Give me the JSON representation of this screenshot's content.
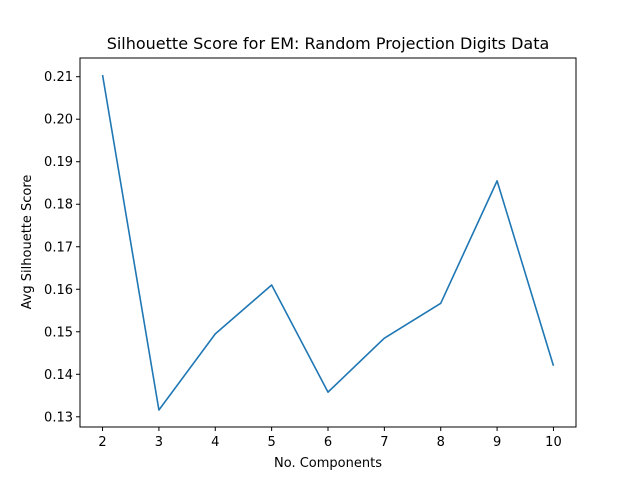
{
  "chart_data": {
    "type": "line",
    "title": "Silhouette Score for EM: Random Projection Digits Data",
    "xlabel": "No. Components",
    "ylabel": "Avg Silhouette Score",
    "x": [
      2,
      3,
      4,
      5,
      6,
      7,
      8,
      9,
      10
    ],
    "series": [
      {
        "values": [
          0.2104,
          0.1316,
          0.1495,
          0.161,
          0.1358,
          0.1485,
          0.1567,
          0.1855,
          0.142
        ],
        "color": "#1f77b4"
      }
    ],
    "xticks": [
      "2",
      "3",
      "4",
      "5",
      "6",
      "7",
      "8",
      "9",
      "10"
    ],
    "yticks": [
      "0.13",
      "0.14",
      "0.15",
      "0.16",
      "0.17",
      "0.18",
      "0.19",
      "0.20",
      "0.21"
    ],
    "xlim": [
      1.6,
      10.4
    ],
    "ylim": [
      0.1276,
      0.2144
    ],
    "grid": false,
    "legend": "none"
  }
}
